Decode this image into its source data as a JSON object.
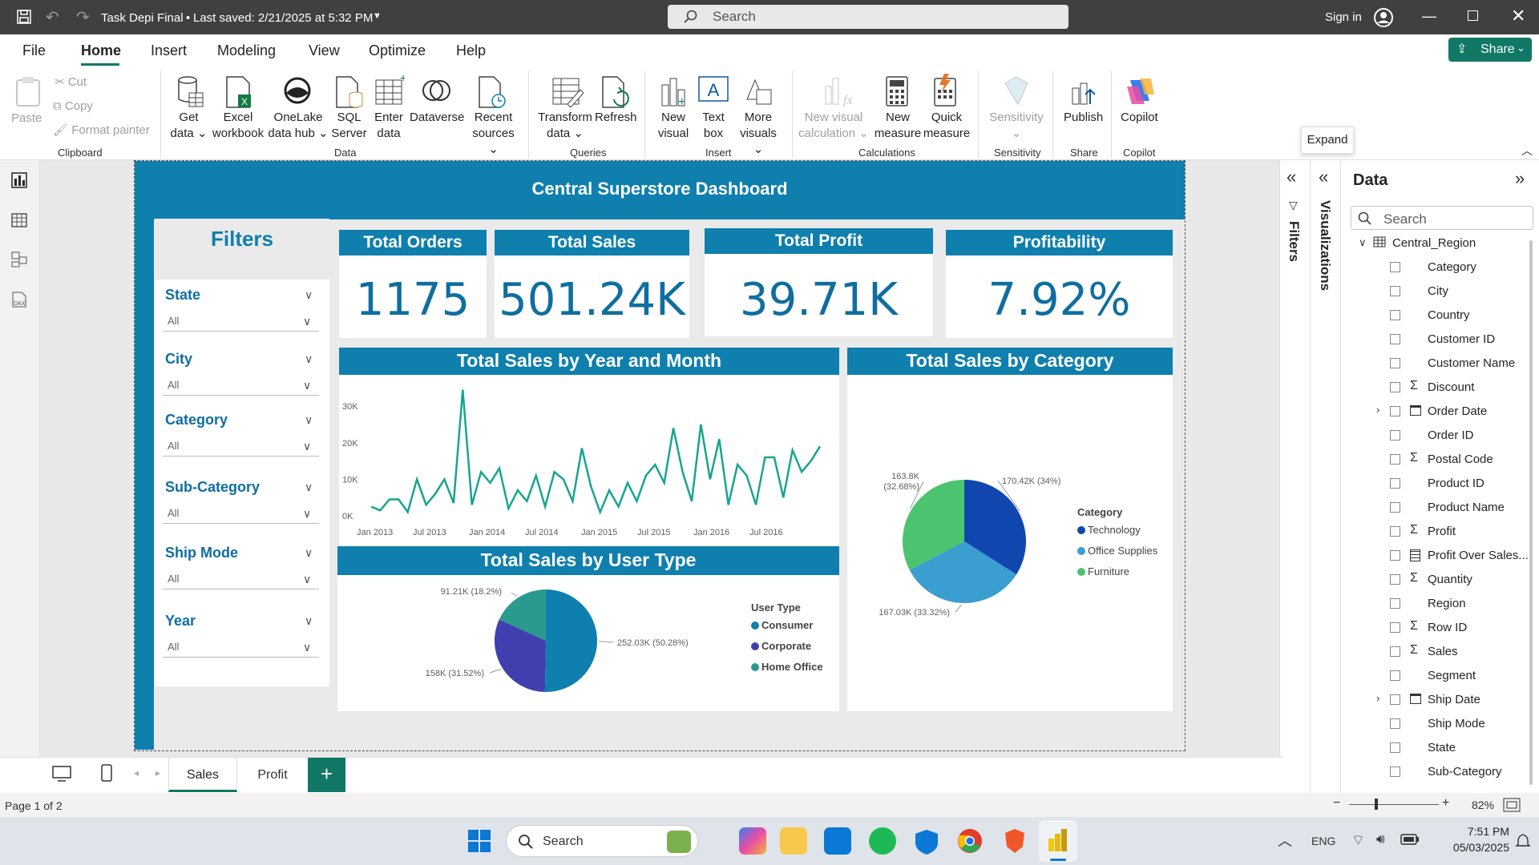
{
  "titlebar": {
    "file_title": "Task Depi Final",
    "saved": "Last saved: 2/21/2025 at 5:32 PM",
    "search_placeholder": "Search",
    "signin": "Sign in"
  },
  "menu": {
    "file": "File",
    "home": "Home",
    "insert": "Insert",
    "modeling": "Modeling",
    "view": "View",
    "optimize": "Optimize",
    "help": "Help",
    "share": "Share"
  },
  "ribbon": {
    "paste": "Paste",
    "cut": "Cut",
    "copy": "Copy",
    "format_painter": "Format painter",
    "get_data": [
      "Get",
      "data"
    ],
    "excel": [
      "Excel",
      "workbook"
    ],
    "onelake": [
      "OneLake",
      "data hub"
    ],
    "sql": [
      "SQL",
      "Server"
    ],
    "enter_data": [
      "Enter",
      "data"
    ],
    "dataverse": "Dataverse",
    "recent": [
      "Recent",
      "sources"
    ],
    "transform": [
      "Transform",
      "data"
    ],
    "refresh": "Refresh",
    "new_visual": [
      "New",
      "visual"
    ],
    "text_box": [
      "Text",
      "box"
    ],
    "more_visuals": [
      "More",
      "visuals"
    ],
    "new_visual_calc": [
      "New visual",
      "calculation"
    ],
    "new_measure": [
      "New",
      "measure"
    ],
    "quick_measure": [
      "Quick",
      "measure"
    ],
    "sensitivity": "Sensitivity",
    "publish": "Publish",
    "copilot": "Copilot",
    "groups": {
      "clipboard": "Clipboard",
      "data": "Data",
      "queries": "Queries",
      "insert": "Insert",
      "calculations": "Calculations",
      "sensitivity": "Sensitivity",
      "share": "Share",
      "copilot": "Copilot"
    },
    "expand_tooltip": "Expand"
  },
  "report": {
    "title": "Central Superstore Dashboard",
    "filters_title": "Filters",
    "slicers": [
      {
        "label": "State",
        "value": "All"
      },
      {
        "label": "City",
        "value": "All"
      },
      {
        "label": "Category",
        "value": "All"
      },
      {
        "label": "Sub-Category",
        "value": "All"
      },
      {
        "label": "Ship Mode",
        "value": "All"
      },
      {
        "label": "Year",
        "value": "All"
      }
    ],
    "kpis": [
      {
        "label": "Total Orders",
        "value": "1175"
      },
      {
        "label": "Total Sales",
        "value": "501.24K"
      },
      {
        "label": "Total Profit",
        "value": "39.71K"
      },
      {
        "label": "Profitability",
        "value": "7.92%"
      }
    ],
    "line_title": "Total Sales by Year and Month",
    "usertype_title": "Total Sales by User Type",
    "category_title": "Total Sales by Category"
  },
  "chart_data": [
    {
      "type": "line",
      "title": "Total Sales by Year and Month",
      "x_ticks": [
        "Jan 2013",
        "Jul 2013",
        "Jan 2014",
        "Jul 2014",
        "Jan 2015",
        "Jul 2015",
        "Jan 2016",
        "Jul 2016"
      ],
      "y_ticks": [
        "0K",
        "10K",
        "20K",
        "30K"
      ],
      "ylim": [
        0,
        32000
      ],
      "color": "#17a58f",
      "values": [
        2500,
        1500,
        4500,
        4500,
        1000,
        10000,
        3000,
        6000,
        10000,
        3500,
        34500,
        3000,
        12000,
        9000,
        13000,
        2000,
        7000,
        4000,
        11000,
        2500,
        12000,
        10000,
        4000,
        18500,
        8000,
        1000,
        7000,
        2500,
        9000,
        4000,
        11000,
        14000,
        9000,
        24000,
        12000,
        4000,
        25000,
        10000,
        21000,
        3000,
        14000,
        11000,
        3000,
        16000,
        16000,
        5000,
        18000,
        12000,
        15000,
        19000
      ]
    },
    {
      "type": "pie",
      "title": "Total Sales by User Type",
      "legend_title": "User Type",
      "labels": [
        "Consumer",
        "Corporate",
        "Home Office"
      ],
      "values": [
        252030,
        158000,
        91210
      ],
      "data_labels": [
        "252.03K (50.28%)",
        "158K (31.52%)",
        "91.21K (18.2%)"
      ],
      "colors": [
        "#0f7fae",
        "#3f3faf",
        "#2a9a8f"
      ]
    },
    {
      "type": "pie",
      "title": "Total Sales by Category",
      "legend_title": "Category",
      "labels": [
        "Technology",
        "Office Supplies",
        "Furniture"
      ],
      "values": [
        170420,
        167030,
        163800
      ],
      "data_labels": [
        "170.42K (34%)",
        "167.03K (33.32%)",
        "163.8K (32.68%)"
      ],
      "colors": [
        "#1047ae",
        "#3a9ed0",
        "#4cc46f"
      ]
    }
  ],
  "side": {
    "filters": "Filters",
    "visualizations": "Visualizations",
    "data_title": "Data",
    "search_placeholder": "Search",
    "table": "Central_Region",
    "fields": [
      {
        "name": "Category",
        "icon": ""
      },
      {
        "name": "City",
        "icon": ""
      },
      {
        "name": "Country",
        "icon": ""
      },
      {
        "name": "Customer ID",
        "icon": ""
      },
      {
        "name": "Customer Name",
        "icon": ""
      },
      {
        "name": "Discount",
        "icon": "Σ"
      },
      {
        "name": "Order Date",
        "icon": "cal"
      },
      {
        "name": "Order ID",
        "icon": ""
      },
      {
        "name": "Postal Code",
        "icon": "Σ"
      },
      {
        "name": "Product ID",
        "icon": ""
      },
      {
        "name": "Product Name",
        "icon": ""
      },
      {
        "name": "Profit",
        "icon": "Σ"
      },
      {
        "name": "Profit Over Sales...",
        "icon": "calc"
      },
      {
        "name": "Quantity",
        "icon": "Σ"
      },
      {
        "name": "Region",
        "icon": ""
      },
      {
        "name": "Row ID",
        "icon": "Σ"
      },
      {
        "name": "Sales",
        "icon": "Σ"
      },
      {
        "name": "Segment",
        "icon": ""
      },
      {
        "name": "Ship Date",
        "icon": "cal"
      },
      {
        "name": "Ship Mode",
        "icon": ""
      },
      {
        "name": "State",
        "icon": ""
      },
      {
        "name": "Sub-Category",
        "icon": ""
      }
    ]
  },
  "tabs": {
    "sales": "Sales",
    "profit": "Profit",
    "add": "+"
  },
  "status": {
    "page": "Page 1 of 2",
    "zoom": "82%"
  },
  "taskbar": {
    "search": "Search",
    "lang": "ENG",
    "time": "7:51 PM",
    "date": "05/03/2025"
  }
}
